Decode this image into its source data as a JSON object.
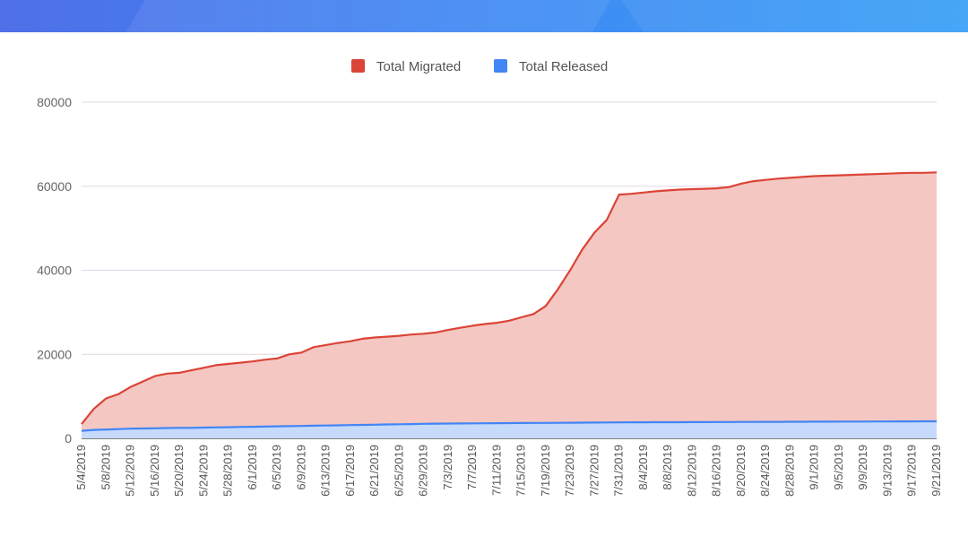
{
  "chart_data": {
    "type": "area",
    "title": "",
    "xlabel": "",
    "ylabel": "",
    "ylim": [
      0,
      80000
    ],
    "yticks": [
      0,
      20000,
      40000,
      60000,
      80000
    ],
    "ytick_labels": [
      "0",
      "20000",
      "40000",
      "60000",
      "80000"
    ],
    "grid": true,
    "legend_position": "top-center",
    "x": [
      "5/4/2019",
      "5/6/2019",
      "5/8/2019",
      "5/10/2019",
      "5/12/2019",
      "5/14/2019",
      "5/16/2019",
      "5/18/2019",
      "5/20/2019",
      "5/22/2019",
      "5/24/2019",
      "5/26/2019",
      "5/28/2019",
      "5/30/2019",
      "6/1/2019",
      "6/3/2019",
      "6/5/2019",
      "6/7/2019",
      "6/9/2019",
      "6/11/2019",
      "6/13/2019",
      "6/15/2019",
      "6/17/2019",
      "6/19/2019",
      "6/21/2019",
      "6/23/2019",
      "6/25/2019",
      "6/27/2019",
      "6/29/2019",
      "7/1/2019",
      "7/3/2019",
      "7/5/2019",
      "7/7/2019",
      "7/9/2019",
      "7/11/2019",
      "7/13/2019",
      "7/15/2019",
      "7/17/2019",
      "7/19/2019",
      "7/21/2019",
      "7/23/2019",
      "7/25/2019",
      "7/27/2019",
      "7/29/2019",
      "7/31/2019",
      "8/2/2019",
      "8/4/2019",
      "8/6/2019",
      "8/8/2019",
      "8/10/2019",
      "8/12/2019",
      "8/14/2019",
      "8/16/2019",
      "8/18/2019",
      "8/20/2019",
      "8/22/2019",
      "8/24/2019",
      "8/26/2019",
      "8/28/2019",
      "8/30/2019",
      "9/1/2019",
      "9/3/2019",
      "9/5/2019",
      "9/7/2019",
      "9/9/2019",
      "9/11/2019",
      "9/13/2019",
      "9/15/2019",
      "9/17/2019",
      "9/19/2019",
      "9/21/2019"
    ],
    "xtick_labels": [
      "5/4/2019",
      "5/8/2019",
      "5/12/2019",
      "5/16/2019",
      "5/20/2019",
      "5/24/2019",
      "5/28/2019",
      "6/1/2019",
      "6/5/2019",
      "6/9/2019",
      "6/13/2019",
      "6/17/2019",
      "6/21/2019",
      "6/25/2019",
      "6/29/2019",
      "7/3/2019",
      "7/7/2019",
      "7/11/2019",
      "7/15/2019",
      "7/19/2019",
      "7/23/2019",
      "7/27/2019",
      "7/31/2019",
      "8/4/2019",
      "8/8/2019",
      "8/12/2019",
      "8/16/2019",
      "8/20/2019",
      "8/24/2019",
      "8/28/2019",
      "9/1/2019",
      "9/5/2019",
      "9/9/2019",
      "9/13/2019",
      "9/17/2019",
      "9/21/2019"
    ],
    "series": [
      {
        "name": "Total Migrated",
        "color": "#db4437",
        "fill": "#f4c7c3",
        "values": [
          3400,
          7000,
          9500,
          10500,
          12200,
          13500,
          14800,
          15400,
          15600,
          16200,
          16800,
          17400,
          17700,
          18000,
          18300,
          18700,
          19000,
          20000,
          20400,
          21700,
          22200,
          22700,
          23100,
          23700,
          24000,
          24200,
          24400,
          24700,
          24900,
          25200,
          25800,
          26300,
          26800,
          27200,
          27500,
          28000,
          28800,
          29600,
          31500,
          35500,
          40000,
          45000,
          49000,
          52000,
          58000,
          58200,
          58500,
          58800,
          59000,
          59200,
          59300,
          59400,
          59500,
          59800,
          60600,
          61200,
          61500,
          61800,
          62000,
          62200,
          62400,
          62500,
          62600,
          62700,
          62800,
          62900,
          63000,
          63100,
          63200,
          63200,
          63300
        ]
      },
      {
        "name": "Total Released",
        "color": "#4285f4",
        "fill": "#c6dafc",
        "values": [
          1800,
          2000,
          2100,
          2200,
          2300,
          2350,
          2400,
          2450,
          2500,
          2500,
          2550,
          2600,
          2650,
          2700,
          2750,
          2800,
          2850,
          2900,
          2950,
          3000,
          3050,
          3100,
          3150,
          3200,
          3250,
          3300,
          3350,
          3400,
          3450,
          3500,
          3520,
          3540,
          3560,
          3580,
          3600,
          3620,
          3640,
          3660,
          3680,
          3700,
          3720,
          3740,
          3760,
          3780,
          3800,
          3810,
          3820,
          3830,
          3840,
          3850,
          3860,
          3870,
          3880,
          3890,
          3900,
          3910,
          3920,
          3930,
          3940,
          3950,
          3960,
          3970,
          3980,
          3990,
          4000,
          4010,
          4020,
          4030,
          4040,
          4050,
          4060
        ]
      }
    ]
  }
}
